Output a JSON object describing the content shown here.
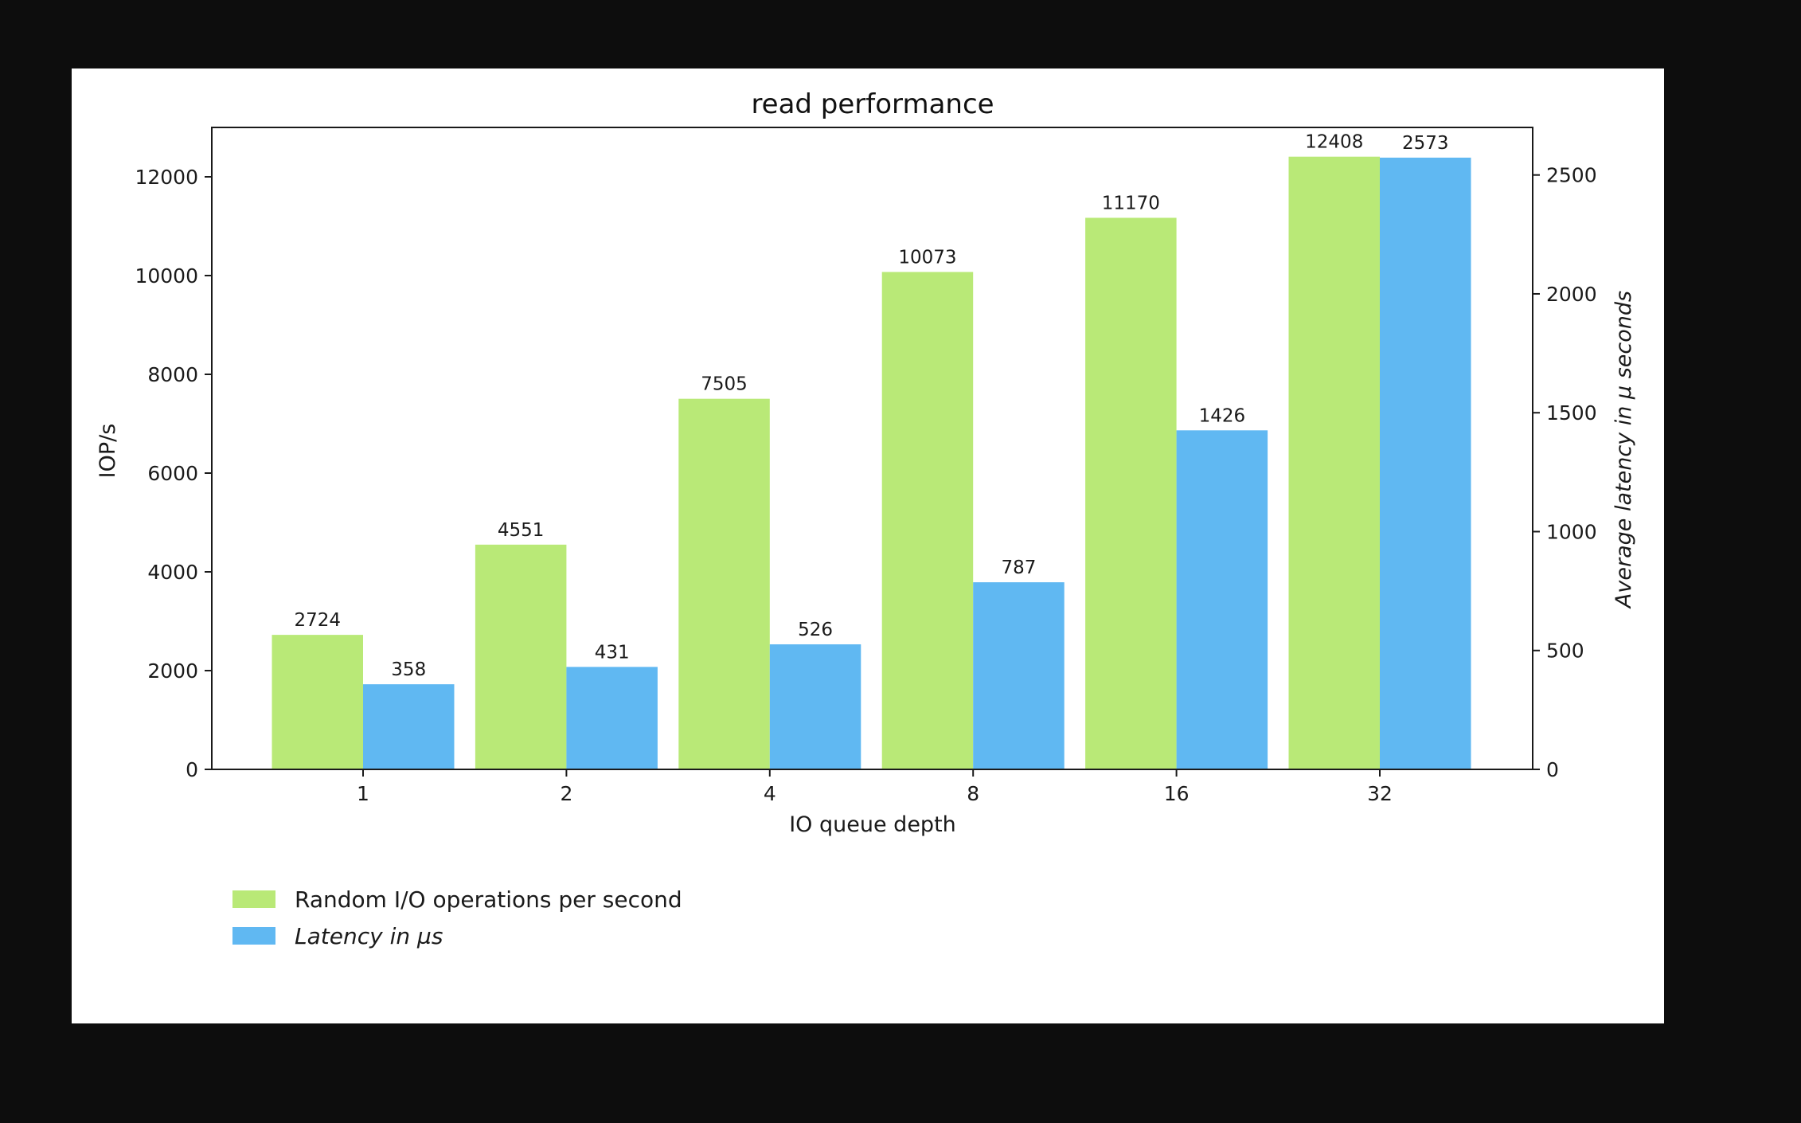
{
  "chart_data": {
    "type": "bar",
    "title": "read performance",
    "xlabel": "IO queue depth",
    "ylabel": "IOP/s",
    "y2label": "Average latency in µ seconds",
    "categories": [
      "1",
      "2",
      "4",
      "8",
      "16",
      "32"
    ],
    "ylim": [
      0,
      13000
    ],
    "y2lim": [
      0,
      2700
    ],
    "yticks": [
      0,
      2000,
      4000,
      6000,
      8000,
      10000,
      12000
    ],
    "y2ticks": [
      0,
      500,
      1000,
      1500,
      2000,
      2500
    ],
    "grid": false,
    "legend_position": "bottom-left",
    "series": [
      {
        "name": "Random I/O operations per second",
        "axis": "left",
        "color": "#b9e977",
        "italic": false,
        "values": [
          2724,
          4551,
          7505,
          10073,
          11170,
          12408
        ]
      },
      {
        "name": "Latency in µs",
        "axis": "right",
        "color": "#60b8f2",
        "italic": true,
        "values": [
          358,
          431,
          526,
          787,
          1426,
          2573
        ]
      }
    ]
  }
}
